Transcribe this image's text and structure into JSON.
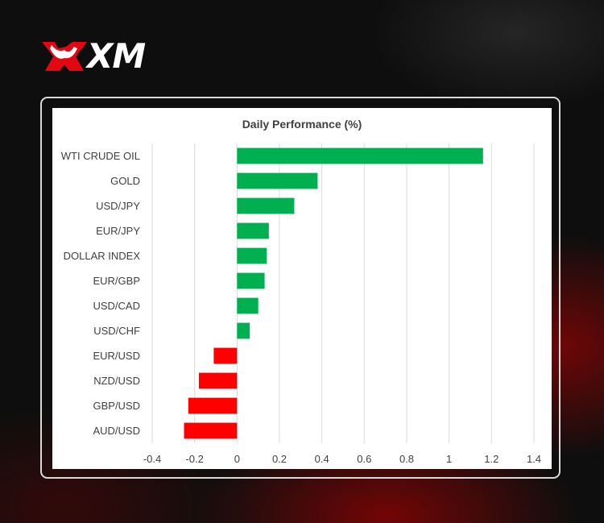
{
  "brand": {
    "logo_text": "XM",
    "accent": "#e30613"
  },
  "chart_data": {
    "type": "bar",
    "orientation": "horizontal",
    "title": "Daily Performance (%)",
    "categories": [
      "WTI CRUDE OIL",
      "GOLD",
      "USD/JPY",
      "EUR/JPY",
      "DOLLAR INDEX",
      "EUR/GBP",
      "USD/CAD",
      "USD/CHF",
      "EUR/USD",
      "NZD/USD",
      "GBP/USD",
      "AUD/USD"
    ],
    "values": [
      1.16,
      0.38,
      0.27,
      0.15,
      0.14,
      0.13,
      0.1,
      0.06,
      -0.11,
      -0.18,
      -0.23,
      -0.25
    ],
    "xlim": [
      -0.4,
      1.4
    ],
    "xticks": [
      -0.4,
      -0.2,
      0,
      0.2,
      0.4,
      0.6,
      0.8,
      1,
      1.2,
      1.4
    ],
    "xtick_labels": [
      "-0.4",
      "-0.2",
      "0",
      "0.2",
      "0.4",
      "0.6",
      "0.8",
      "1",
      "1.2",
      "1.4"
    ],
    "grid": "vertical",
    "colors": {
      "positive": "#00b050",
      "negative": "#ff0000",
      "grid": "#d9d9d9",
      "text": "#404040"
    }
  }
}
